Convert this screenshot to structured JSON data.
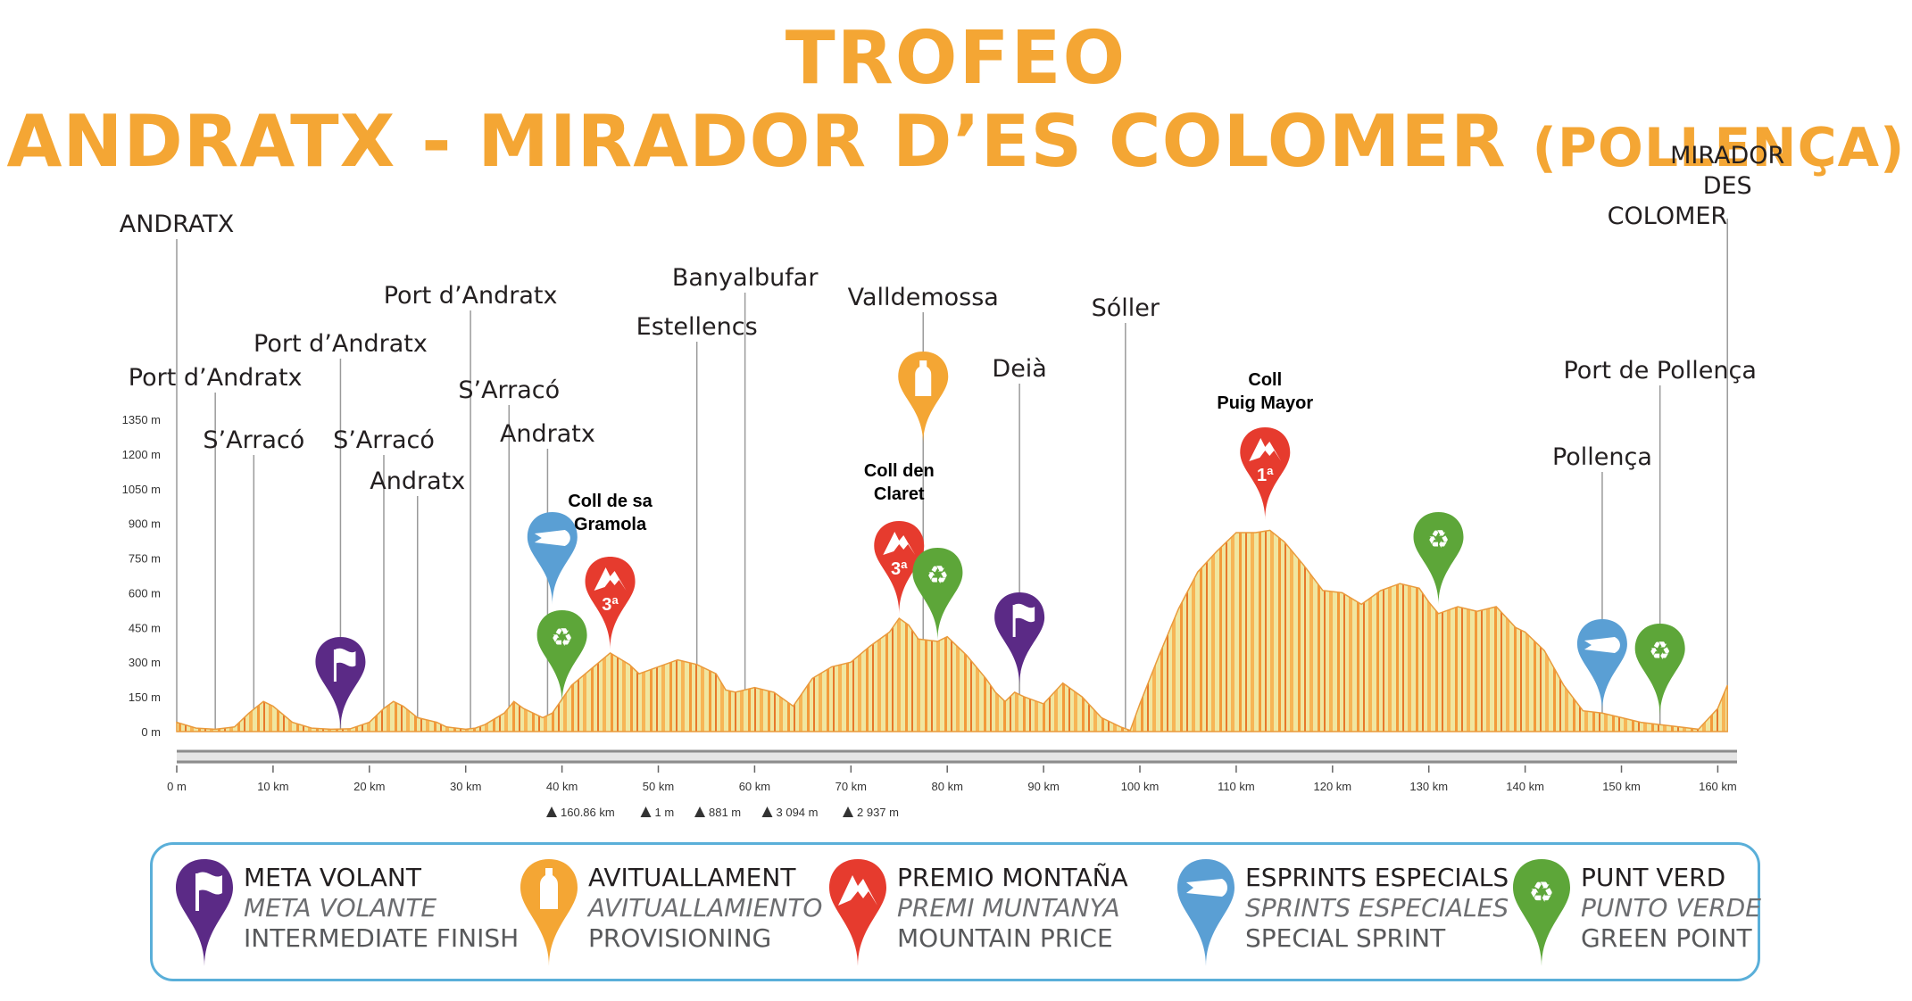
{
  "title": {
    "line1": "TROFEO",
    "line2_main": "ANDRATX - MIRADOR D’ES COLOMER",
    "line2_sub": "(POLLENÇA)"
  },
  "colors": {
    "title": "#f4a634",
    "intermediate": "#5b2a86",
    "provisioning": "#f4a634",
    "mountain": "#e63b2e",
    "sprint": "#5a9fd4",
    "green": "#5da639",
    "profile_light": "#f0e6a0",
    "profile_orange": "#f39a3a",
    "legend_border": "#5aafd9"
  },
  "chart_data": {
    "type": "area",
    "title": "TROFEO ANDRATX - MIRADOR D’ES COLOMER (POLLENÇA)",
    "xlabel": "",
    "ylabel": "",
    "xlim": [
      0,
      162
    ],
    "ylim": [
      0,
      1350
    ],
    "x_ticks": [
      0,
      10,
      20,
      30,
      40,
      50,
      60,
      70,
      80,
      90,
      100,
      110,
      120,
      130,
      140,
      150,
      160
    ],
    "x_tick_labels": [
      "0 m",
      "10 km",
      "20 km",
      "30 km",
      "40 km",
      "50 km",
      "60 km",
      "70 km",
      "80 km",
      "90 km",
      "100 km",
      "110 km",
      "120 km",
      "130 km",
      "140 km",
      "150 km",
      "160 km"
    ],
    "y_ticks": [
      0,
      150,
      300,
      450,
      600,
      750,
      900,
      1050,
      1200,
      1350
    ],
    "y_tick_labels": [
      "0 m",
      "150 m",
      "300 m",
      "450 m",
      "600 m",
      "750 m",
      "900 m",
      "1050 m",
      "1200 m",
      "1350 m"
    ],
    "grid": false,
    "profile": {
      "x": [
        0,
        2,
        4,
        6,
        7.5,
        9,
        10,
        12,
        14,
        16,
        18,
        20,
        21.5,
        22.5,
        23.5,
        25,
        27,
        28,
        30,
        31,
        32,
        34,
        35,
        36,
        38,
        39,
        40,
        41,
        43,
        45,
        47,
        48,
        50,
        52,
        54,
        56,
        57,
        58,
        60,
        62,
        64,
        65,
        66,
        68,
        70,
        72,
        74,
        75,
        76,
        77,
        79,
        80,
        82,
        84,
        85,
        86,
        87,
        88,
        90,
        92,
        94,
        96,
        98,
        99,
        100,
        102,
        104,
        106,
        108,
        110,
        112,
        113.5,
        115,
        117,
        119,
        121,
        123,
        125,
        127,
        129,
        130,
        131,
        133,
        135,
        137,
        139,
        140,
        142,
        144,
        146,
        148,
        150,
        152,
        154,
        156,
        158,
        160,
        161
      ],
      "y": [
        40,
        15,
        10,
        20,
        80,
        130,
        110,
        40,
        15,
        10,
        12,
        40,
        100,
        130,
        110,
        60,
        40,
        20,
        10,
        15,
        30,
        80,
        130,
        100,
        60,
        80,
        140,
        200,
        270,
        340,
        290,
        250,
        280,
        310,
        290,
        250,
        180,
        170,
        190,
        170,
        110,
        170,
        230,
        280,
        300,
        370,
        430,
        490,
        460,
        400,
        390,
        410,
        330,
        230,
        170,
        130,
        170,
        150,
        120,
        210,
        150,
        60,
        20,
        5,
        120,
        330,
        530,
        690,
        780,
        860,
        860,
        870,
        820,
        720,
        610,
        600,
        550,
        610,
        640,
        620,
        560,
        510,
        540,
        520,
        540,
        450,
        430,
        350,
        200,
        90,
        80,
        60,
        40,
        30,
        20,
        10,
        100,
        200
      ]
    },
    "towns": [
      {
        "name": "ANDRATX",
        "km": 0
      },
      {
        "name": "Port d’Andratx",
        "km": 4
      },
      {
        "name": "S’Arracó",
        "km": 8
      },
      {
        "name": "Port d’Andratx",
        "km": 17
      },
      {
        "name": "S’Arracó",
        "km": 21.5
      },
      {
        "name": "Andratx",
        "km": 25
      },
      {
        "name": "Port d’Andratx",
        "km": 30.5
      },
      {
        "name": "S’Arracó",
        "km": 34.5
      },
      {
        "name": "Andratx",
        "km": 38.5
      },
      {
        "name": "Estellencs",
        "km": 54
      },
      {
        "name": "Banyalbufar",
        "km": 59
      },
      {
        "name": "Valldemossa",
        "km": 77.5
      },
      {
        "name": "Deià",
        "km": 87.5
      },
      {
        "name": "Sóller",
        "km": 98.5
      },
      {
        "name": "Pollença",
        "km": 148
      },
      {
        "name": "Port de Pollença",
        "km": 154
      },
      {
        "name": "MIRADOR",
        "name2": "DES",
        "name3": "COLOMER",
        "km": 161
      }
    ],
    "climbs": [
      {
        "name": "Coll de sa",
        "name2": "Gramola",
        "km": 45
      },
      {
        "name": "Coll den",
        "name2": "Claret",
        "km": 75
      },
      {
        "name": "Coll",
        "name2": "Puig Mayor",
        "km": 113
      }
    ],
    "markers": [
      {
        "type": "intermediate",
        "km": 17
      },
      {
        "type": "sprint",
        "km": 39
      },
      {
        "type": "green",
        "km": 40
      },
      {
        "type": "mountain",
        "km": 45,
        "label": "3ª"
      },
      {
        "type": "mountain",
        "km": 75,
        "label": "3ª"
      },
      {
        "type": "provisioning",
        "km": 77.5
      },
      {
        "type": "green",
        "km": 79
      },
      {
        "type": "intermediate",
        "km": 87.5
      },
      {
        "type": "mountain",
        "km": 113,
        "label": "1ª"
      },
      {
        "type": "green",
        "km": 131
      },
      {
        "type": "sprint",
        "km": 148
      },
      {
        "type": "green",
        "km": 154
      }
    ],
    "stats": [
      {
        "icon": "distance",
        "text": "160.86 km"
      },
      {
        "icon": "min-altitude",
        "text": "1 m"
      },
      {
        "icon": "max-altitude",
        "text": "881 m"
      },
      {
        "icon": "ascent",
        "text": "3 094 m"
      },
      {
        "icon": "descent",
        "text": "2 937 m"
      }
    ]
  },
  "legend": [
    {
      "type": "intermediate",
      "icon": "flag-icon",
      "line1": "META VOLANT",
      "line2": "META VOLANTE",
      "line3": "INTERMEDIATE FINISH"
    },
    {
      "type": "provisioning",
      "icon": "bottle-icon",
      "line1": "AVITUALLAMENT",
      "line2": "AVITUALLAMIENTO",
      "line3": "PROVISIONING"
    },
    {
      "type": "mountain",
      "icon": "mountain-icon",
      "line1": "PREMIO MONTAÑA",
      "line2": "PREMI MUNTANYA",
      "line3": "MOUNTAIN PRICE"
    },
    {
      "type": "sprint",
      "icon": "sprint-icon",
      "line1": "ESPRINTS ESPECIALS",
      "line2": "SPRINTS ESPECIALES",
      "line3": "SPECIAL SPRINT"
    },
    {
      "type": "green",
      "icon": "recycle-icon",
      "line1": "PUNT VERD",
      "line2": "PUNTO VERDE",
      "line3": "GREEN POINT"
    }
  ]
}
